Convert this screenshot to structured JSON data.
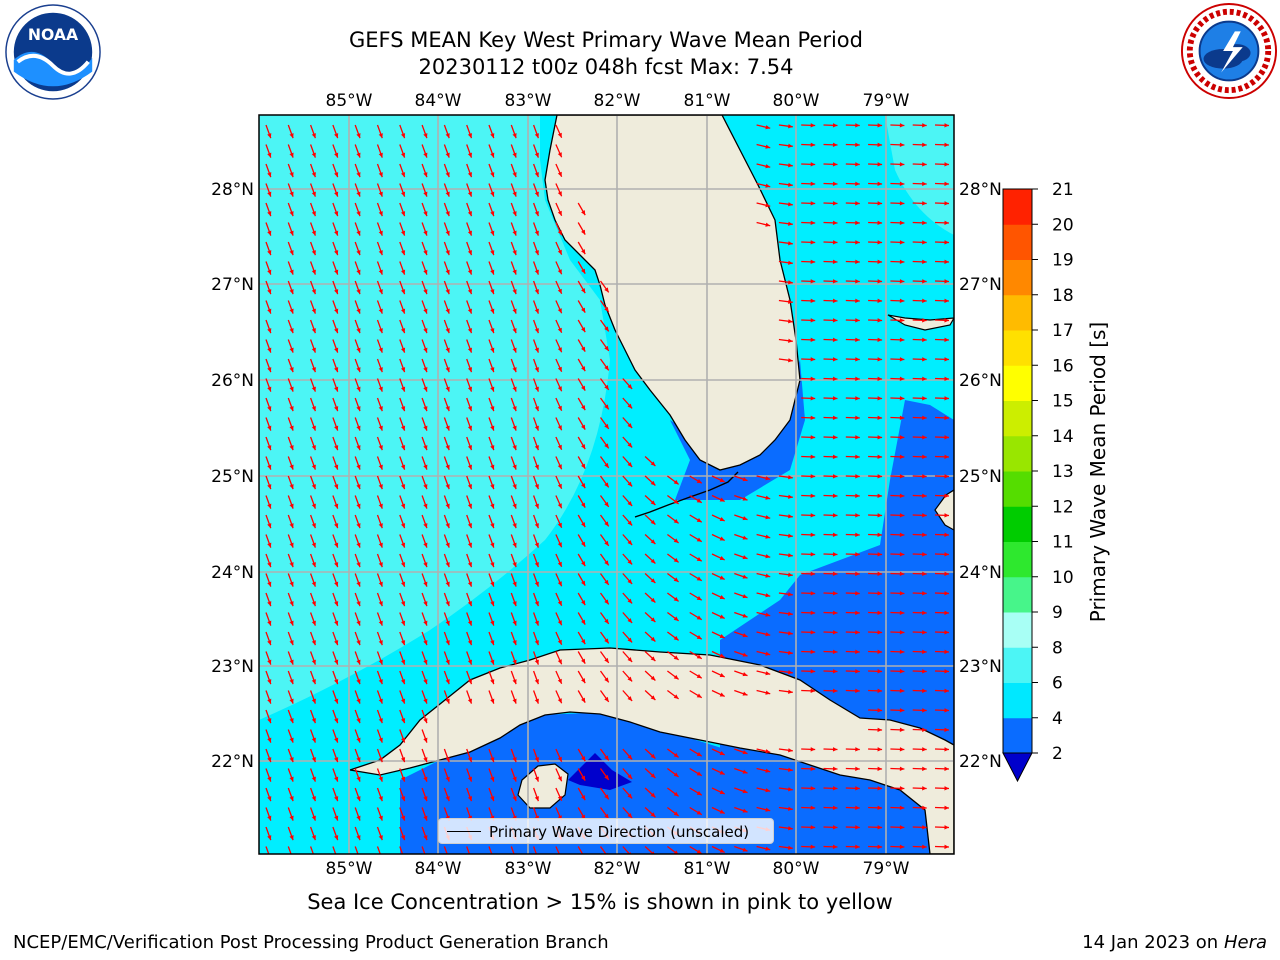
{
  "header": {
    "title_line1": "GEFS MEAN Key West Primary Wave Mean Period",
    "title_line2": "20230112 t00z 048h fcst   Max: 7.54"
  },
  "logos": {
    "left": {
      "text": "NOAA",
      "icon": "noaa-logo-icon"
    },
    "right": {
      "icon": "nws-logo-icon"
    }
  },
  "map": {
    "lon_labels": [
      "85°W",
      "84°W",
      "83°W",
      "82°W",
      "81°W",
      "80°W",
      "79°W"
    ],
    "lat_labels": [
      "28°N",
      "27°N",
      "26°N",
      "25°N",
      "24°N",
      "23°N",
      "22°N"
    ],
    "legend_label": "Primary Wave Direction (unscaled)",
    "arrow_color": "#ff0000",
    "land_color": "#efecdc",
    "gridline_color": "#b0b0b0"
  },
  "colorbar": {
    "title": "Primary Wave Mean Period [s]",
    "ticks": [
      "2",
      "4",
      "6",
      "8",
      "9",
      "10",
      "11",
      "12",
      "13",
      "14",
      "15",
      "16",
      "17",
      "18",
      "19",
      "20",
      "21"
    ],
    "colors": [
      "#0000cc",
      "#0a6cff",
      "#00e8ff",
      "#4cf5f5",
      "#a8fff5",
      "#47f58a",
      "#2ee82e",
      "#00cc00",
      "#55dd00",
      "#99e600",
      "#ccee00",
      "#ffff00",
      "#ffe000",
      "#ffbb00",
      "#ff8800",
      "#ff5500",
      "#ff2200",
      "#ff0000"
    ]
  },
  "footer": {
    "sea_ice_note": "Sea Ice Concentration > 15% is shown in pink to yellow",
    "credit": "NCEP/EMC/Verification Post Processing Product Generation Branch",
    "date_text": "14 Jan 2023 on ",
    "host": "Hera"
  }
}
